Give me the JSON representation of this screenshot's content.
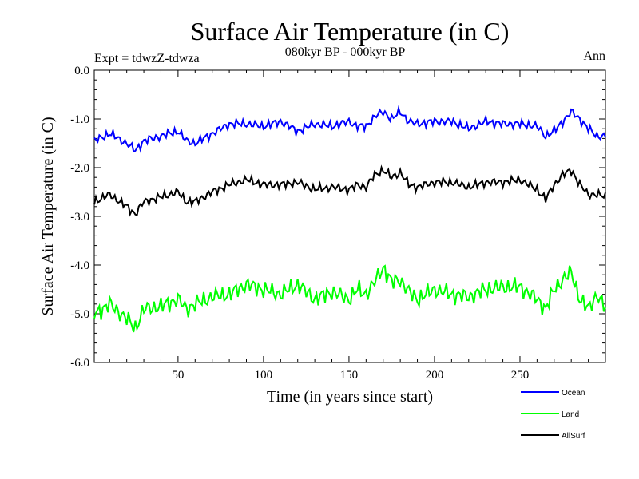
{
  "chart_data": {
    "type": "line",
    "title": "Surface Air Temperature (in C)",
    "subtitle": "080kyr BP - 000kyr BP",
    "left_label": "Expt = tdwzZ-tdwza",
    "right_label": "Ann",
    "xlabel": "Time (in years since start)",
    "ylabel": "Surface Air Temperature (in C)",
    "xlim": [
      1,
      300
    ],
    "ylim": [
      -6.0,
      0.0
    ],
    "x_ticks": [
      50,
      100,
      150,
      200,
      250
    ],
    "x_tick_labels": [
      "50",
      "100",
      "150",
      "200",
      "250"
    ],
    "y_ticks": [
      0.0,
      -1.0,
      -2.0,
      -3.0,
      -4.0,
      -5.0,
      -6.0
    ],
    "y_tick_labels": [
      "0.0",
      "-1.0",
      "-2.0",
      "-3.0",
      "-4.0",
      "-5.0",
      "-6.0"
    ],
    "series": [
      {
        "name": "Ocean",
        "color": "#0000ff",
        "x": [
          1,
          10,
          20,
          25,
          30,
          40,
          50,
          55,
          60,
          70,
          80,
          90,
          100,
          110,
          120,
          130,
          140,
          150,
          155,
          160,
          165,
          170,
          175,
          180,
          185,
          190,
          200,
          210,
          220,
          230,
          240,
          250,
          260,
          265,
          270,
          275,
          280,
          285,
          290,
          295,
          300
        ],
        "values": [
          -1.45,
          -1.3,
          -1.5,
          -1.65,
          -1.45,
          -1.35,
          -1.25,
          -1.45,
          -1.5,
          -1.3,
          -1.1,
          -1.1,
          -1.15,
          -1.05,
          -1.25,
          -1.1,
          -1.15,
          -1.05,
          -1.15,
          -1.15,
          -0.95,
          -0.85,
          -1.0,
          -0.85,
          -1.05,
          -1.1,
          -1.05,
          -1.05,
          -1.2,
          -1.05,
          -1.1,
          -1.1,
          -1.15,
          -1.35,
          -1.25,
          -1.05,
          -0.85,
          -1.0,
          -1.2,
          -1.35,
          -1.35
        ]
      },
      {
        "name": "Land",
        "color": "#00ff00",
        "x": [
          1,
          10,
          20,
          25,
          30,
          40,
          50,
          55,
          60,
          70,
          80,
          90,
          100,
          110,
          120,
          130,
          140,
          150,
          155,
          160,
          165,
          170,
          175,
          180,
          185,
          190,
          200,
          210,
          220,
          230,
          240,
          250,
          260,
          265,
          270,
          275,
          280,
          285,
          290,
          295,
          300
        ],
        "values": [
          -5.0,
          -4.8,
          -5.1,
          -5.3,
          -4.9,
          -4.85,
          -4.7,
          -4.9,
          -4.8,
          -4.65,
          -4.6,
          -4.4,
          -4.5,
          -4.6,
          -4.4,
          -4.7,
          -4.55,
          -4.7,
          -4.5,
          -4.6,
          -4.35,
          -4.05,
          -4.35,
          -4.3,
          -4.55,
          -4.7,
          -4.5,
          -4.6,
          -4.65,
          -4.5,
          -4.45,
          -4.45,
          -4.7,
          -4.9,
          -4.5,
          -4.3,
          -4.15,
          -4.7,
          -4.9,
          -4.6,
          -4.9
        ]
      },
      {
        "name": "AllSurf",
        "color": "#000000",
        "x": [
          1,
          10,
          20,
          25,
          30,
          40,
          50,
          55,
          60,
          70,
          80,
          90,
          100,
          110,
          120,
          130,
          140,
          150,
          155,
          160,
          165,
          170,
          175,
          180,
          185,
          190,
          200,
          210,
          220,
          230,
          240,
          250,
          260,
          265,
          270,
          275,
          280,
          285,
          290,
          295,
          300
        ],
        "values": [
          -2.7,
          -2.55,
          -2.8,
          -2.95,
          -2.7,
          -2.6,
          -2.5,
          -2.7,
          -2.7,
          -2.5,
          -2.35,
          -2.25,
          -2.35,
          -2.35,
          -2.3,
          -2.45,
          -2.4,
          -2.45,
          -2.35,
          -2.4,
          -2.15,
          -2.05,
          -2.2,
          -2.1,
          -2.35,
          -2.4,
          -2.3,
          -2.3,
          -2.4,
          -2.3,
          -2.3,
          -2.25,
          -2.45,
          -2.65,
          -2.35,
          -2.15,
          -2.05,
          -2.35,
          -2.55,
          -2.55,
          -2.6
        ]
      }
    ],
    "legend_position": "bottom-right"
  }
}
